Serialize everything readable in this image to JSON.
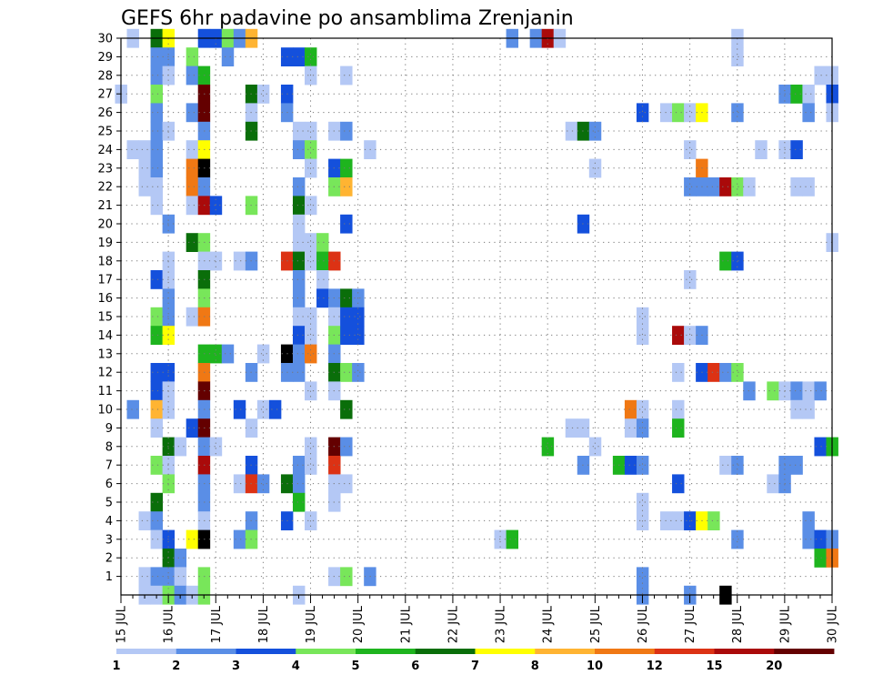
{
  "chart_data": {
    "type": "heatmap",
    "title": "GEFS 6hr padavine po ansamblima Zrenjanin",
    "x_ticks": [
      "15 JUL",
      "16 JUL",
      "17 JUL",
      "18 JUL",
      "19 JUL",
      "20 JUL",
      "21 JUL",
      "22 JUL",
      "23 JUL",
      "24 JUL",
      "25 JUL",
      "26 JUL",
      "27 JUL",
      "28 JUL",
      "29 JUL",
      "30 JUL"
    ],
    "y_ticks": [
      1,
      2,
      3,
      4,
      5,
      6,
      7,
      8,
      9,
      10,
      11,
      12,
      13,
      14,
      15,
      16,
      17,
      18,
      19,
      20,
      21,
      22,
      23,
      24,
      25,
      26,
      27,
      28,
      29,
      30
    ],
    "xlim": [
      "15 JUL",
      "30 JUL"
    ],
    "ylim": [
      0,
      30
    ],
    "x_step_hours": 6,
    "grid": true,
    "legend": "bottom colorbar",
    "colorbar": {
      "labels": [
        "1",
        "2",
        "3",
        "4",
        "5",
        "6",
        "7",
        "8",
        "10",
        "12",
        "15",
        "20"
      ],
      "colors": [
        "#b4c8f5",
        "#5a8ee6",
        "#1450dc",
        "#78e65a",
        "#1eb41e",
        "#0a6e0a",
        "#ffff00",
        "#ffb432",
        "#f07814",
        "#dc3214",
        "#aa0a0a",
        "#640000"
      ]
    },
    "cells": [
      [
        1,
        30,
        1
      ],
      [
        3,
        30,
        6
      ],
      [
        4,
        30,
        7
      ],
      [
        7,
        30,
        3
      ],
      [
        8,
        30,
        3
      ],
      [
        9,
        30,
        4
      ],
      [
        10,
        30,
        2
      ],
      [
        11,
        30,
        8
      ],
      [
        33,
        30,
        2
      ],
      [
        35,
        30,
        2
      ],
      [
        36,
        30,
        11
      ],
      [
        37,
        30,
        1
      ],
      [
        52,
        30,
        1
      ],
      [
        3,
        29,
        2
      ],
      [
        4,
        29,
        2
      ],
      [
        6,
        29,
        4
      ],
      [
        9,
        29,
        2
      ],
      [
        14,
        29,
        3
      ],
      [
        15,
        29,
        3
      ],
      [
        16,
        29,
        5
      ],
      [
        52,
        29,
        1
      ],
      [
        3,
        28,
        2
      ],
      [
        4,
        28,
        1
      ],
      [
        6,
        28,
        2
      ],
      [
        7,
        28,
        5
      ],
      [
        16,
        28,
        1
      ],
      [
        19,
        28,
        1
      ],
      [
        59,
        28,
        1
      ],
      [
        60,
        28,
        1
      ],
      [
        0,
        27,
        1
      ],
      [
        3,
        27,
        4
      ],
      [
        7,
        27,
        12
      ],
      [
        11,
        27,
        6
      ],
      [
        12,
        27,
        1
      ],
      [
        14,
        27,
        3
      ],
      [
        56,
        27,
        2
      ],
      [
        57,
        27,
        5
      ],
      [
        58,
        27,
        1
      ],
      [
        60,
        27,
        3
      ],
      [
        3,
        26,
        2
      ],
      [
        6,
        26,
        2
      ],
      [
        7,
        26,
        12
      ],
      [
        11,
        26,
        1
      ],
      [
        14,
        26,
        2
      ],
      [
        44,
        26,
        3
      ],
      [
        46,
        26,
        1
      ],
      [
        47,
        26,
        4
      ],
      [
        48,
        26,
        1
      ],
      [
        49,
        26,
        7
      ],
      [
        52,
        26,
        2
      ],
      [
        58,
        26,
        2
      ],
      [
        60,
        26,
        1
      ],
      [
        3,
        25,
        2
      ],
      [
        4,
        25,
        1
      ],
      [
        7,
        25,
        2
      ],
      [
        11,
        25,
        6
      ],
      [
        15,
        25,
        1
      ],
      [
        16,
        25,
        1
      ],
      [
        18,
        25,
        1
      ],
      [
        19,
        25,
        2
      ],
      [
        38,
        25,
        1
      ],
      [
        39,
        25,
        6
      ],
      [
        40,
        25,
        2
      ],
      [
        1,
        24,
        1
      ],
      [
        2,
        24,
        1
      ],
      [
        3,
        24,
        2
      ],
      [
        6,
        24,
        1
      ],
      [
        7,
        24,
        7
      ],
      [
        15,
        24,
        2
      ],
      [
        16,
        24,
        4
      ],
      [
        21,
        24,
        1
      ],
      [
        48,
        24,
        1
      ],
      [
        54,
        24,
        1
      ],
      [
        56,
        24,
        1
      ],
      [
        57,
        24,
        3
      ],
      [
        2,
        23,
        1
      ],
      [
        3,
        23,
        2
      ],
      [
        6,
        23,
        9
      ],
      [
        7,
        23,
        13
      ],
      [
        16,
        23,
        1
      ],
      [
        18,
        23,
        3
      ],
      [
        19,
        23,
        5
      ],
      [
        40,
        23,
        1
      ],
      [
        49,
        23,
        9
      ],
      [
        2,
        22,
        1
      ],
      [
        3,
        22,
        1
      ],
      [
        6,
        22,
        9
      ],
      [
        7,
        22,
        2
      ],
      [
        15,
        22,
        2
      ],
      [
        18,
        22,
        4
      ],
      [
        19,
        22,
        8
      ],
      [
        48,
        22,
        2
      ],
      [
        49,
        22,
        2
      ],
      [
        50,
        22,
        2
      ],
      [
        51,
        22,
        11
      ],
      [
        52,
        22,
        4
      ],
      [
        53,
        22,
        1
      ],
      [
        57,
        22,
        1
      ],
      [
        58,
        22,
        1
      ],
      [
        3,
        21,
        1
      ],
      [
        6,
        21,
        1
      ],
      [
        7,
        21,
        11
      ],
      [
        8,
        21,
        3
      ],
      [
        11,
        21,
        4
      ],
      [
        15,
        21,
        6
      ],
      [
        16,
        21,
        1
      ],
      [
        4,
        20,
        2
      ],
      [
        15,
        20,
        1
      ],
      [
        19,
        20,
        3
      ],
      [
        39,
        20,
        3
      ],
      [
        6,
        19,
        6
      ],
      [
        7,
        19,
        4
      ],
      [
        15,
        19,
        1
      ],
      [
        16,
        19,
        1
      ],
      [
        17,
        19,
        4
      ],
      [
        60,
        19,
        1
      ],
      [
        4,
        18,
        1
      ],
      [
        7,
        18,
        1
      ],
      [
        8,
        18,
        1
      ],
      [
        10,
        18,
        1
      ],
      [
        11,
        18,
        2
      ],
      [
        14,
        18,
        10
      ],
      [
        15,
        18,
        6
      ],
      [
        16,
        18,
        1
      ],
      [
        17,
        18,
        5
      ],
      [
        18,
        18,
        10
      ],
      [
        51,
        18,
        5
      ],
      [
        52,
        18,
        3
      ],
      [
        3,
        17,
        3
      ],
      [
        4,
        17,
        1
      ],
      [
        7,
        17,
        6
      ],
      [
        15,
        17,
        2
      ],
      [
        17,
        17,
        1
      ],
      [
        48,
        17,
        1
      ],
      [
        4,
        16,
        2
      ],
      [
        7,
        16,
        4
      ],
      [
        15,
        16,
        2
      ],
      [
        17,
        16,
        3
      ],
      [
        18,
        16,
        2
      ],
      [
        19,
        16,
        6
      ],
      [
        20,
        16,
        2
      ],
      [
        3,
        15,
        4
      ],
      [
        4,
        15,
        2
      ],
      [
        6,
        15,
        1
      ],
      [
        7,
        15,
        9
      ],
      [
        15,
        15,
        1
      ],
      [
        16,
        15,
        1
      ],
      [
        18,
        15,
        1
      ],
      [
        19,
        15,
        3
      ],
      [
        20,
        15,
        3
      ],
      [
        44,
        15,
        1
      ],
      [
        3,
        14,
        5
      ],
      [
        4,
        14,
        7
      ],
      [
        15,
        14,
        3
      ],
      [
        16,
        14,
        1
      ],
      [
        18,
        14,
        4
      ],
      [
        19,
        14,
        3
      ],
      [
        20,
        14,
        3
      ],
      [
        44,
        14,
        1
      ],
      [
        47,
        14,
        11
      ],
      [
        48,
        14,
        1
      ],
      [
        49,
        14,
        2
      ],
      [
        7,
        13,
        5
      ],
      [
        8,
        13,
        5
      ],
      [
        9,
        13,
        2
      ],
      [
        12,
        13,
        1
      ],
      [
        14,
        13,
        13
      ],
      [
        15,
        13,
        2
      ],
      [
        16,
        13,
        9
      ],
      [
        18,
        13,
        2
      ],
      [
        3,
        12,
        3
      ],
      [
        4,
        12,
        3
      ],
      [
        7,
        12,
        9
      ],
      [
        11,
        12,
        2
      ],
      [
        14,
        12,
        2
      ],
      [
        15,
        12,
        2
      ],
      [
        18,
        12,
        6
      ],
      [
        19,
        12,
        4
      ],
      [
        20,
        12,
        2
      ],
      [
        47,
        12,
        1
      ],
      [
        49,
        12,
        3
      ],
      [
        50,
        12,
        10
      ],
      [
        51,
        12,
        2
      ],
      [
        52,
        12,
        4
      ],
      [
        3,
        11,
        3
      ],
      [
        4,
        11,
        1
      ],
      [
        7,
        11,
        12
      ],
      [
        16,
        11,
        1
      ],
      [
        18,
        11,
        1
      ],
      [
        53,
        11,
        2
      ],
      [
        55,
        11,
        4
      ],
      [
        56,
        11,
        1
      ],
      [
        57,
        11,
        2
      ],
      [
        58,
        11,
        1
      ],
      [
        59,
        11,
        2
      ],
      [
        1,
        10,
        2
      ],
      [
        3,
        10,
        8
      ],
      [
        4,
        10,
        1
      ],
      [
        7,
        10,
        2
      ],
      [
        10,
        10,
        3
      ],
      [
        12,
        10,
        1
      ],
      [
        13,
        10,
        3
      ],
      [
        19,
        10,
        6
      ],
      [
        43,
        10,
        9
      ],
      [
        44,
        10,
        1
      ],
      [
        47,
        10,
        1
      ],
      [
        57,
        10,
        1
      ],
      [
        58,
        10,
        1
      ],
      [
        3,
        9,
        1
      ],
      [
        6,
        9,
        3
      ],
      [
        7,
        9,
        12
      ],
      [
        11,
        9,
        1
      ],
      [
        38,
        9,
        1
      ],
      [
        39,
        9,
        1
      ],
      [
        43,
        9,
        1
      ],
      [
        44,
        9,
        2
      ],
      [
        47,
        9,
        5
      ],
      [
        4,
        8,
        6
      ],
      [
        5,
        8,
        1
      ],
      [
        7,
        8,
        2
      ],
      [
        8,
        8,
        1
      ],
      [
        16,
        8,
        1
      ],
      [
        18,
        8,
        12
      ],
      [
        19,
        8,
        2
      ],
      [
        36,
        8,
        5
      ],
      [
        40,
        8,
        1
      ],
      [
        59,
        8,
        3
      ],
      [
        60,
        8,
        5
      ],
      [
        3,
        7,
        4
      ],
      [
        4,
        7,
        1
      ],
      [
        7,
        7,
        11
      ],
      [
        11,
        7,
        3
      ],
      [
        15,
        7,
        2
      ],
      [
        16,
        7,
        1
      ],
      [
        18,
        7,
        10
      ],
      [
        39,
        7,
        2
      ],
      [
        42,
        7,
        5
      ],
      [
        43,
        7,
        3
      ],
      [
        44,
        7,
        2
      ],
      [
        51,
        7,
        1
      ],
      [
        52,
        7,
        2
      ],
      [
        56,
        7,
        2
      ],
      [
        57,
        7,
        2
      ],
      [
        4,
        6,
        4
      ],
      [
        7,
        6,
        2
      ],
      [
        10,
        6,
        1
      ],
      [
        11,
        6,
        10
      ],
      [
        12,
        6,
        2
      ],
      [
        14,
        6,
        6
      ],
      [
        15,
        6,
        2
      ],
      [
        18,
        6,
        1
      ],
      [
        19,
        6,
        1
      ],
      [
        47,
        6,
        3
      ],
      [
        55,
        6,
        1
      ],
      [
        56,
        6,
        2
      ],
      [
        3,
        5,
        6
      ],
      [
        7,
        5,
        2
      ],
      [
        15,
        5,
        5
      ],
      [
        18,
        5,
        1
      ],
      [
        44,
        5,
        1
      ],
      [
        2,
        4,
        1
      ],
      [
        3,
        4,
        2
      ],
      [
        7,
        4,
        1
      ],
      [
        11,
        4,
        2
      ],
      [
        14,
        4,
        3
      ],
      [
        16,
        4,
        1
      ],
      [
        44,
        4,
        1
      ],
      [
        46,
        4,
        1
      ],
      [
        47,
        4,
        1
      ],
      [
        48,
        4,
        3
      ],
      [
        49,
        4,
        7
      ],
      [
        50,
        4,
        4
      ],
      [
        58,
        4,
        2
      ],
      [
        3,
        3,
        1
      ],
      [
        4,
        3,
        3
      ],
      [
        6,
        3,
        7
      ],
      [
        7,
        3,
        13
      ],
      [
        10,
        3,
        2
      ],
      [
        11,
        3,
        4
      ],
      [
        32,
        3,
        1
      ],
      [
        33,
        3,
        5
      ],
      [
        52,
        3,
        2
      ],
      [
        58,
        3,
        2
      ],
      [
        59,
        3,
        3
      ],
      [
        60,
        3,
        2
      ],
      [
        4,
        2,
        6
      ],
      [
        5,
        2,
        2
      ],
      [
        59,
        2,
        5
      ],
      [
        60,
        2,
        9
      ],
      [
        2,
        1,
        1
      ],
      [
        3,
        1,
        2
      ],
      [
        4,
        1,
        2
      ],
      [
        5,
        1,
        1
      ],
      [
        7,
        1,
        4
      ],
      [
        18,
        1,
        1
      ],
      [
        19,
        1,
        4
      ],
      [
        21,
        1,
        2
      ],
      [
        44,
        1,
        2
      ],
      [
        2,
        0,
        1
      ],
      [
        3,
        0,
        1
      ],
      [
        4,
        0,
        4
      ],
      [
        5,
        0,
        2
      ],
      [
        6,
        0,
        1
      ],
      [
        7,
        0,
        4
      ],
      [
        15,
        0,
        1
      ],
      [
        44,
        0,
        2
      ],
      [
        48,
        0,
        2
      ],
      [
        51,
        0,
        13
      ]
    ]
  }
}
